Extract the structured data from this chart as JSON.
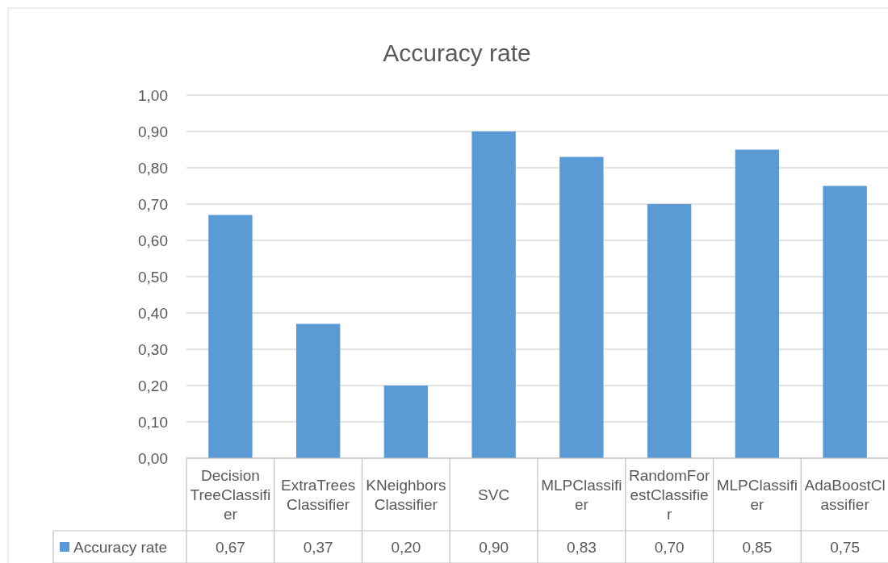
{
  "chart_data": {
    "type": "bar",
    "title": "Accuracy rate",
    "categories": [
      "Decision TreeClassifier",
      "ExtraTreesClassifier",
      "KNeighborsClassifier",
      "SVC",
      "MLPClassifier",
      "RandomForestClassifier",
      "MLPClassifier",
      "AdaBoostClassifier"
    ],
    "series": [
      {
        "name": "Accuracy rate",
        "color": "#5b9bd5",
        "values": [
          0.67,
          0.37,
          0.2,
          0.9,
          0.83,
          0.7,
          0.85,
          0.75
        ],
        "value_labels": [
          "0,67",
          "0,37",
          "0,20",
          "0,90",
          "0,83",
          "0,70",
          "0,85",
          "0,75"
        ]
      }
    ],
    "ylim": [
      0,
      1
    ],
    "yticks": [
      {
        "value": 0,
        "label": "0,00"
      },
      {
        "value": 0.1,
        "label": "0,10"
      },
      {
        "value": 0.2,
        "label": "0,20"
      },
      {
        "value": 0.3,
        "label": "0,30"
      },
      {
        "value": 0.4,
        "label": "0,40"
      },
      {
        "value": 0.5,
        "label": "0,50"
      },
      {
        "value": 0.6,
        "label": "0,60"
      },
      {
        "value": 0.7,
        "label": "0,70"
      },
      {
        "value": 0.8,
        "label": "0,80"
      },
      {
        "value": 0.9,
        "label": "0,90"
      },
      {
        "value": 1,
        "label": "1,00"
      }
    ],
    "grid": "y",
    "legend": "bottom"
  }
}
